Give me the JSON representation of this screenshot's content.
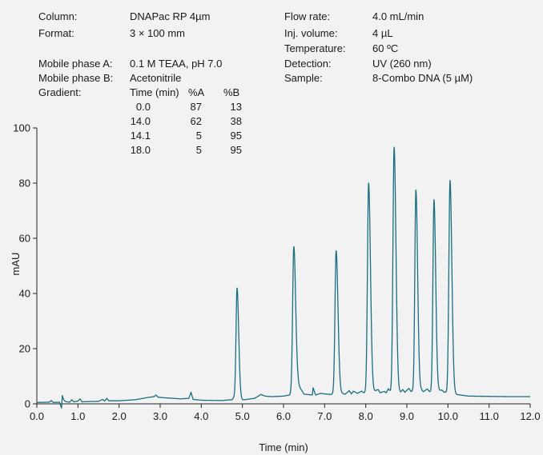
{
  "method_info": {
    "left": [
      {
        "label": "Column:",
        "value": "DNAPac RP 4µm"
      },
      {
        "label": "Format:",
        "value": "3 × 100 mm"
      },
      {
        "label": "Mobile phase A:",
        "value": "0.1 M TEAA, pH 7.0"
      },
      {
        "label": "Mobile phase B:",
        "value": "Acetonitrile"
      },
      {
        "label": "Gradient:",
        "value": ""
      }
    ],
    "right": [
      {
        "label": "Flow rate:",
        "value": "4.0 mL/min"
      },
      {
        "label": "Inj. volume:",
        "value": "4 µL"
      },
      {
        "label": "Temperature:",
        "value": "60 ºC"
      },
      {
        "label": "Detection:",
        "value": "UV (260 nm)"
      },
      {
        "label": "Sample:",
        "value": "8-Combo DNA (5 µM)"
      }
    ],
    "gradient_table": {
      "headers": [
        "Time (min)",
        "%A",
        "%B"
      ],
      "rows": [
        [
          "0.0",
          "87",
          "13"
        ],
        [
          "14.0",
          "62",
          "38"
        ],
        [
          "14.1",
          "5",
          "95"
        ],
        [
          "18.0",
          "5",
          "95"
        ]
      ]
    }
  },
  "chart_data": {
    "type": "line",
    "xlabel": "Time (min)",
    "ylabel": "mAU",
    "xlim": [
      0,
      12
    ],
    "ylim": [
      0,
      100
    ],
    "x_ticks": [
      "0.0",
      "1.0",
      "2.0",
      "3.0",
      "4.0",
      "5.0",
      "6.0",
      "7.0",
      "8.0",
      "9.0",
      "10.0",
      "11.0",
      "12.0"
    ],
    "y_ticks": [
      "0",
      "20",
      "40",
      "60",
      "80",
      "100"
    ],
    "line_color": "#1a6e80",
    "baseline_points": [
      [
        0.0,
        0.5
      ],
      [
        0.3,
        0.6
      ],
      [
        0.35,
        1.2
      ],
      [
        0.4,
        0.5
      ],
      [
        0.55,
        0.6
      ],
      [
        0.6,
        -1.5
      ],
      [
        0.62,
        3.0
      ],
      [
        0.65,
        1.5
      ],
      [
        0.7,
        0.8
      ],
      [
        0.8,
        0.6
      ],
      [
        0.85,
        1.5
      ],
      [
        0.9,
        0.7
      ],
      [
        1.0,
        1.0
      ],
      [
        1.05,
        1.8
      ],
      [
        1.1,
        0.7
      ],
      [
        1.2,
        0.8
      ],
      [
        1.5,
        0.9
      ],
      [
        1.6,
        1.6
      ],
      [
        1.65,
        1.0
      ],
      [
        1.7,
        2.0
      ],
      [
        1.75,
        1.1
      ],
      [
        2.0,
        1.1
      ],
      [
        2.4,
        1.5
      ],
      [
        2.7,
        2.3
      ],
      [
        2.85,
        2.6
      ],
      [
        2.9,
        3.2
      ],
      [
        2.95,
        2.4
      ],
      [
        3.1,
        2.2
      ],
      [
        3.5,
        1.8
      ],
      [
        3.7,
        2.0
      ],
      [
        3.75,
        4.2
      ],
      [
        3.8,
        1.6
      ],
      [
        4.0,
        1.3
      ],
      [
        4.5,
        1.2
      ],
      [
        4.75,
        1.5
      ],
      [
        4.8,
        2.5
      ],
      [
        5.0,
        1.4
      ],
      [
        5.3,
        2.0
      ],
      [
        5.45,
        3.4
      ],
      [
        5.55,
        2.8
      ],
      [
        5.7,
        2.6
      ],
      [
        6.0,
        2.8
      ],
      [
        6.15,
        3.2
      ],
      [
        6.35,
        7.0
      ],
      [
        6.5,
        3.5
      ],
      [
        6.7,
        3.2
      ],
      [
        6.72,
        5.8
      ],
      [
        6.78,
        3.2
      ],
      [
        6.9,
        3.8
      ],
      [
        7.0,
        3.6
      ],
      [
        7.15,
        3.4
      ],
      [
        7.35,
        4.0
      ],
      [
        7.5,
        3.5
      ],
      [
        7.6,
        4.8
      ],
      [
        7.65,
        3.6
      ],
      [
        7.7,
        4.6
      ],
      [
        7.8,
        3.8
      ],
      [
        7.9,
        4.6
      ],
      [
        7.95,
        4.0
      ],
      [
        8.2,
        4.5
      ],
      [
        8.3,
        5.2
      ],
      [
        8.35,
        4.0
      ],
      [
        8.45,
        4.5
      ],
      [
        8.5,
        4.0
      ],
      [
        8.55,
        5.5
      ],
      [
        8.6,
        4.5
      ],
      [
        8.85,
        4.2
      ],
      [
        8.9,
        5.2
      ],
      [
        8.95,
        4.2
      ],
      [
        9.05,
        5.6
      ],
      [
        9.1,
        4.5
      ],
      [
        9.35,
        5.2
      ],
      [
        9.4,
        4.4
      ],
      [
        9.5,
        5.4
      ],
      [
        9.55,
        4.4
      ],
      [
        9.75,
        4.6
      ],
      [
        9.85,
        5.0
      ],
      [
        9.9,
        4.3
      ],
      [
        10.2,
        3.4
      ],
      [
        10.5,
        2.8
      ],
      [
        11.0,
        2.7
      ],
      [
        11.5,
        2.6
      ],
      [
        12.0,
        2.6
      ]
    ],
    "peaks": [
      {
        "x": 4.87,
        "y": 42,
        "w": 0.025
      },
      {
        "x": 6.25,
        "y": 57,
        "w": 0.028
      },
      {
        "x": 7.28,
        "y": 55.5,
        "w": 0.028
      },
      {
        "x": 8.07,
        "y": 80,
        "w": 0.028
      },
      {
        "x": 8.69,
        "y": 93,
        "w": 0.028
      },
      {
        "x": 9.22,
        "y": 77.5,
        "w": 0.026
      },
      {
        "x": 9.66,
        "y": 74,
        "w": 0.026
      },
      {
        "x": 10.05,
        "y": 81,
        "w": 0.028
      }
    ]
  }
}
